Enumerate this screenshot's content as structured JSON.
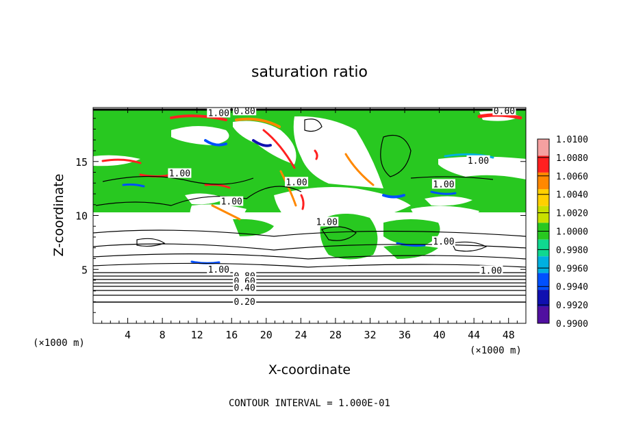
{
  "chart_data": {
    "type": "heatmap",
    "title": "saturation ratio",
    "xlabel": "X-coordinate",
    "ylabel": "Z-coordinate",
    "x_unit": "(×1000 m)",
    "y_unit": "(×1000 m)",
    "xlim": [
      0,
      50
    ],
    "ylim": [
      0,
      20
    ],
    "x_ticks": [
      4,
      8,
      12,
      16,
      20,
      24,
      28,
      32,
      36,
      40,
      44,
      48
    ],
    "y_ticks": [
      5,
      10,
      15
    ],
    "colorbar": {
      "levels": [
        "1.0100",
        "1.0080",
        "1.0060",
        "1.0040",
        "1.0020",
        "1.0000",
        "0.9980",
        "0.9960",
        "0.9940",
        "0.9920",
        "0.9900"
      ],
      "colors": [
        "#f5a0a0",
        "#ff2020",
        "#ff8800",
        "#ffd000",
        "#c8e000",
        "#28c820",
        "#10d890",
        "#00b0e0",
        "#0050ff",
        "#1010b0",
        "#5010a0"
      ]
    },
    "contour_interval": "CONTOUR INTERVAL = 1.000E-01",
    "contour_labels": [
      {
        "text": "1.00",
        "x": 14.5,
        "z": 19.4
      },
      {
        "text": "0.80",
        "x": 17.5,
        "z": 19.6
      },
      {
        "text": "0.60",
        "x": 47.5,
        "z": 19.6
      },
      {
        "text": "1.00",
        "x": 10,
        "z": 13.8
      },
      {
        "text": "1.00",
        "x": 23.5,
        "z": 13
      },
      {
        "text": "1.00",
        "x": 16,
        "z": 11.2
      },
      {
        "text": "1.00",
        "x": 40.5,
        "z": 12.8
      },
      {
        "text": "1.00",
        "x": 44.5,
        "z": 15
      },
      {
        "text": "1.00",
        "x": 27,
        "z": 9.3
      },
      {
        "text": "1.00",
        "x": 40.5,
        "z": 7.5
      },
      {
        "text": "1.00",
        "x": 14.5,
        "z": 4.9
      },
      {
        "text": "0.80",
        "x": 17.5,
        "z": 4.3
      },
      {
        "text": "0.60",
        "x": 17.5,
        "z": 3.8
      },
      {
        "text": "0.40",
        "x": 17.5,
        "z": 3.2
      },
      {
        "text": "0.20",
        "x": 17.5,
        "z": 1.9
      },
      {
        "text": "1.00",
        "x": 46,
        "z": 4.8
      }
    ]
  }
}
